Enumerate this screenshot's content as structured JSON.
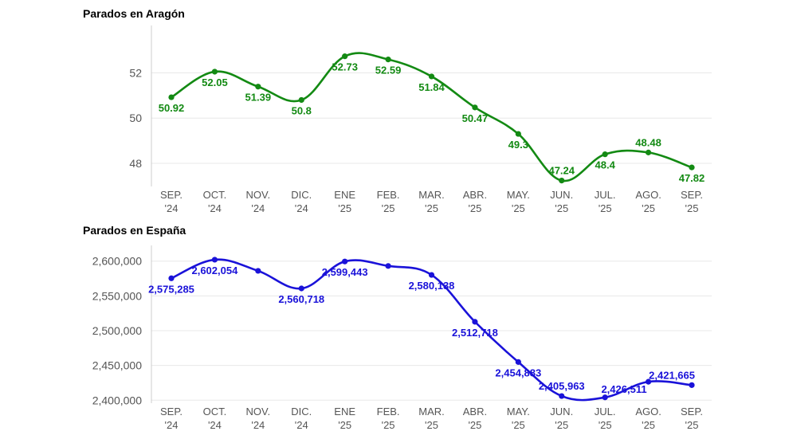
{
  "chart_data": [
    {
      "type": "line",
      "title": "Parados en Aragón",
      "color": "#138a13",
      "x_categories": [
        [
          "SEP.",
          "'24"
        ],
        [
          "OCT.",
          "'24"
        ],
        [
          "NOV.",
          "'24"
        ],
        [
          "DIC.",
          "'24"
        ],
        [
          "ENE",
          "'25"
        ],
        [
          "FEB.",
          "'25"
        ],
        [
          "MAR.",
          "'25"
        ],
        [
          "ABR.",
          "'25"
        ],
        [
          "MAY.",
          "'25"
        ],
        [
          "JUN.",
          "'25"
        ],
        [
          "JUL.",
          "'25"
        ],
        [
          "AGO.",
          "'25"
        ],
        [
          "SEP.",
          "'25"
        ]
      ],
      "values": [
        50.92,
        52.05,
        51.39,
        50.8,
        52.73,
        52.59,
        51.84,
        50.47,
        49.3,
        47.24,
        48.4,
        48.48,
        47.82
      ],
      "value_labels": [
        "50.92",
        "52.05",
        "51.39",
        "50.8",
        "52.73",
        "52.59",
        "51.84",
        "50.47",
        "49.3",
        "47.24",
        "48.4",
        "48.48",
        "47.82"
      ],
      "label_pos": [
        "below",
        "below",
        "below",
        "below",
        "below",
        "below",
        "below",
        "below",
        "below",
        "above",
        "below",
        "above",
        "below"
      ],
      "yticks": [
        48,
        50,
        52
      ],
      "ytick_labels": [
        "48",
        "50",
        "52"
      ],
      "ylim": [
        47.05,
        53.95
      ]
    },
    {
      "type": "line",
      "title": "Parados en España",
      "color": "#1a12d9",
      "x_categories": [
        [
          "SEP.",
          "'24"
        ],
        [
          "OCT.",
          "'24"
        ],
        [
          "NOV.",
          "'24"
        ],
        [
          "DIC.",
          "'24"
        ],
        [
          "ENE",
          "'25"
        ],
        [
          "FEB.",
          "'25"
        ],
        [
          "MAR.",
          "'25"
        ],
        [
          "ABR.",
          "'25"
        ],
        [
          "MAY.",
          "'25"
        ],
        [
          "JUN.",
          "'25"
        ],
        [
          "JUL.",
          "'25"
        ],
        [
          "AGO.",
          "'25"
        ],
        [
          "SEP.",
          "'25"
        ]
      ],
      "values": [
        2575285,
        2602054,
        2586000,
        2560718,
        2599443,
        2593000,
        2580138,
        2512718,
        2454883,
        2405963,
        2404000,
        2426511,
        2421665
      ],
      "value_labels": [
        "2,575,285",
        "2,602,054",
        null,
        "2,560,718",
        "2,599,443",
        null,
        "2,580,138",
        "2,512,718",
        "2,454,883",
        "2,405,963",
        null,
        "2,426,511",
        "2,421,665"
      ],
      "label_pos": [
        "below",
        "below",
        "none",
        "below",
        "below",
        "none",
        "below",
        "below",
        "below",
        "above",
        "none",
        "below-left",
        "above"
      ],
      "yticks": [
        2400000,
        2450000,
        2500000,
        2550000,
        2600000
      ],
      "ytick_labels": [
        "2,400,000",
        "2,450,000",
        "2,500,000",
        "2,550,000",
        "2,600,000"
      ],
      "ylim": [
        2398000,
        2618000
      ]
    }
  ]
}
